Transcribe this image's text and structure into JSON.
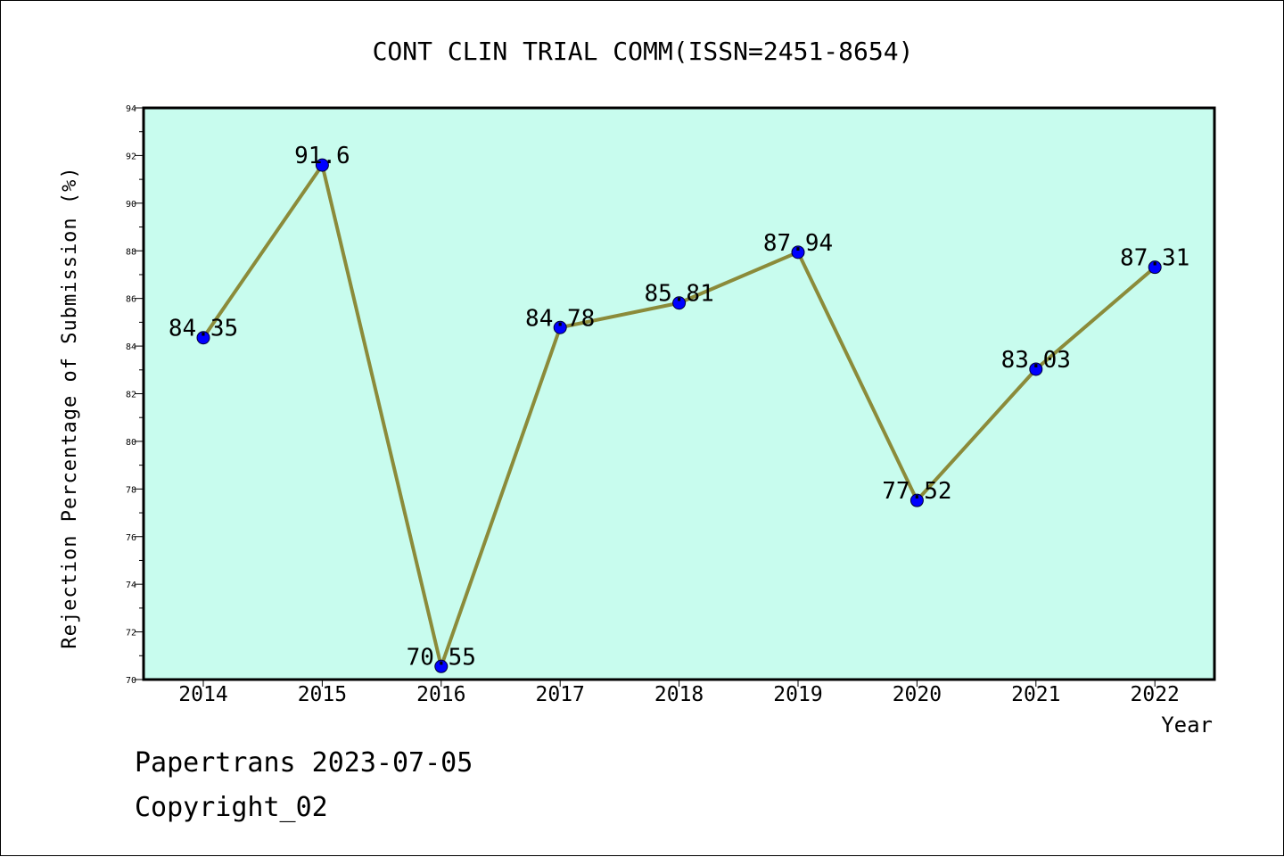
{
  "chart_data": {
    "type": "line",
    "title": "CONT CLIN TRIAL COMM(ISSN=2451-8654)",
    "xlabel": "Year",
    "ylabel": "Rejection Percentage of Submission (%)",
    "categories": [
      "2014",
      "2015",
      "2016",
      "2017",
      "2018",
      "2019",
      "2020",
      "2021",
      "2022"
    ],
    "values": [
      84.35,
      91.6,
      70.55,
      84.78,
      85.81,
      87.94,
      77.52,
      83.03,
      87.31
    ],
    "data_labels": [
      "84.35",
      "91.6",
      "70.55",
      "84.78",
      "85.81",
      "87.94",
      "77.52",
      "83.03",
      "87.31"
    ],
    "ylim": [
      70,
      94
    ],
    "yticks": [
      "70",
      "72",
      "74",
      "76",
      "78",
      "80",
      "82",
      "84",
      "86",
      "88",
      "90",
      "92",
      "94"
    ],
    "grid": false,
    "colors": {
      "plot_background": "#c8fcee",
      "line": "#8b8b3a",
      "marker": "#0000ff"
    }
  },
  "footer": {
    "line1": "Papertrans 2023-07-05",
    "line2": "Copyright_02"
  }
}
